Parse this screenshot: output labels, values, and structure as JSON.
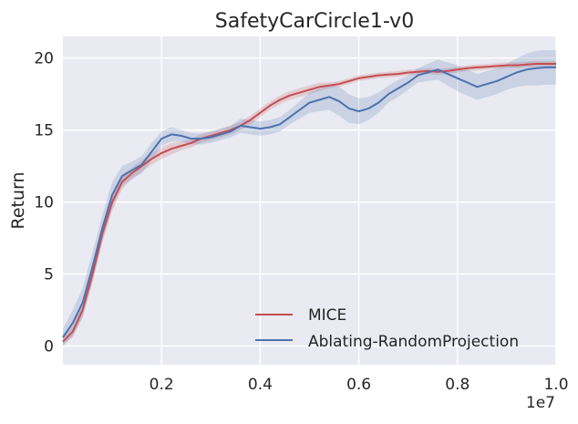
{
  "chart_data": {
    "type": "line",
    "title": "SafetyCarCircle1-v0",
    "xlabel": "",
    "ylabel": "Return",
    "x_offset_label": "1e7",
    "xlim": [
      0.0,
      1.0
    ],
    "ylim": [
      -1.3,
      21.5
    ],
    "xticks": [
      0.2,
      0.4,
      0.6,
      0.8,
      1.0
    ],
    "xtick_labels": [
      "0.2",
      "0.4",
      "0.6",
      "0.8",
      "1.0"
    ],
    "yticks": [
      0,
      5,
      10,
      15,
      20
    ],
    "ytick_labels": [
      "0",
      "5",
      "10",
      "15",
      "20"
    ],
    "grid": true,
    "legend_position": "lower-right",
    "series": [
      {
        "name": "MICE",
        "color": "#c44e52",
        "points": [
          [
            0.0,
            0.3
          ],
          [
            0.02,
            1.0
          ],
          [
            0.04,
            2.5
          ],
          [
            0.06,
            5.0
          ],
          [
            0.08,
            7.8
          ],
          [
            0.1,
            10.0
          ],
          [
            0.12,
            11.4
          ],
          [
            0.14,
            12.0
          ],
          [
            0.16,
            12.5
          ],
          [
            0.18,
            13.0
          ],
          [
            0.2,
            13.4
          ],
          [
            0.22,
            13.7
          ],
          [
            0.24,
            13.9
          ],
          [
            0.26,
            14.1
          ],
          [
            0.28,
            14.4
          ],
          [
            0.3,
            14.6
          ],
          [
            0.32,
            14.8
          ],
          [
            0.34,
            15.0
          ],
          [
            0.36,
            15.3
          ],
          [
            0.38,
            15.7
          ],
          [
            0.4,
            16.2
          ],
          [
            0.42,
            16.7
          ],
          [
            0.44,
            17.1
          ],
          [
            0.46,
            17.4
          ],
          [
            0.48,
            17.6
          ],
          [
            0.5,
            17.8
          ],
          [
            0.52,
            18.0
          ],
          [
            0.54,
            18.1
          ],
          [
            0.56,
            18.2
          ],
          [
            0.58,
            18.4
          ],
          [
            0.6,
            18.6
          ],
          [
            0.62,
            18.7
          ],
          [
            0.64,
            18.8
          ],
          [
            0.66,
            18.85
          ],
          [
            0.68,
            18.9
          ],
          [
            0.7,
            19.0
          ],
          [
            0.72,
            19.05
          ],
          [
            0.74,
            19.1
          ],
          [
            0.76,
            19.05
          ],
          [
            0.78,
            19.1
          ],
          [
            0.8,
            19.2
          ],
          [
            0.82,
            19.3
          ],
          [
            0.84,
            19.35
          ],
          [
            0.86,
            19.4
          ],
          [
            0.88,
            19.45
          ],
          [
            0.9,
            19.5
          ],
          [
            0.92,
            19.5
          ],
          [
            0.94,
            19.55
          ],
          [
            0.96,
            19.6
          ],
          [
            0.98,
            19.6
          ],
          [
            1.0,
            19.6
          ]
        ],
        "band": [
          0.25,
          0.4,
          0.5,
          0.6,
          0.6,
          0.6,
          0.5,
          0.4,
          0.4,
          0.4,
          0.4,
          0.4,
          0.3,
          0.3,
          0.3,
          0.3,
          0.3,
          0.3,
          0.3,
          0.3,
          0.3,
          0.3,
          0.3,
          0.3,
          0.3,
          0.3,
          0.3,
          0.2,
          0.2,
          0.2,
          0.2,
          0.2,
          0.2,
          0.2,
          0.2,
          0.2,
          0.2,
          0.2,
          0.2,
          0.2,
          0.2,
          0.2,
          0.2,
          0.2,
          0.2,
          0.2,
          0.2,
          0.2,
          0.2,
          0.2,
          0.2
        ]
      },
      {
        "name": "Ablating-RandomProjection",
        "color": "#4c72b0",
        "points": [
          [
            0.0,
            0.6
          ],
          [
            0.02,
            1.6
          ],
          [
            0.04,
            3.0
          ],
          [
            0.06,
            5.5
          ],
          [
            0.08,
            8.2
          ],
          [
            0.1,
            10.5
          ],
          [
            0.12,
            11.8
          ],
          [
            0.14,
            12.2
          ],
          [
            0.16,
            12.6
          ],
          [
            0.18,
            13.5
          ],
          [
            0.2,
            14.4
          ],
          [
            0.22,
            14.7
          ],
          [
            0.24,
            14.6
          ],
          [
            0.26,
            14.4
          ],
          [
            0.28,
            14.4
          ],
          [
            0.3,
            14.5
          ],
          [
            0.32,
            14.7
          ],
          [
            0.34,
            14.9
          ],
          [
            0.36,
            15.3
          ],
          [
            0.38,
            15.2
          ],
          [
            0.4,
            15.1
          ],
          [
            0.42,
            15.2
          ],
          [
            0.44,
            15.4
          ],
          [
            0.46,
            15.9
          ],
          [
            0.48,
            16.4
          ],
          [
            0.5,
            16.9
          ],
          [
            0.52,
            17.1
          ],
          [
            0.54,
            17.3
          ],
          [
            0.56,
            17.0
          ],
          [
            0.58,
            16.5
          ],
          [
            0.6,
            16.3
          ],
          [
            0.62,
            16.5
          ],
          [
            0.64,
            16.9
          ],
          [
            0.66,
            17.5
          ],
          [
            0.68,
            17.9
          ],
          [
            0.7,
            18.3
          ],
          [
            0.72,
            18.8
          ],
          [
            0.74,
            19.0
          ],
          [
            0.76,
            19.2
          ],
          [
            0.78,
            18.9
          ],
          [
            0.8,
            18.6
          ],
          [
            0.82,
            18.3
          ],
          [
            0.84,
            18.0
          ],
          [
            0.86,
            18.2
          ],
          [
            0.88,
            18.4
          ],
          [
            0.9,
            18.7
          ],
          [
            0.92,
            19.0
          ],
          [
            0.94,
            19.2
          ],
          [
            0.96,
            19.3
          ],
          [
            0.98,
            19.35
          ],
          [
            1.0,
            19.35
          ]
        ],
        "band": [
          0.6,
          0.9,
          1.0,
          1.0,
          0.9,
          0.9,
          0.7,
          0.6,
          0.6,
          0.6,
          0.5,
          0.5,
          0.4,
          0.4,
          0.4,
          0.4,
          0.4,
          0.4,
          0.5,
          0.5,
          0.5,
          0.5,
          0.5,
          0.5,
          0.6,
          0.7,
          0.8,
          0.9,
          1.0,
          1.0,
          0.9,
          0.8,
          0.7,
          0.6,
          0.6,
          0.5,
          0.5,
          0.6,
          0.7,
          0.8,
          0.9,
          0.9,
          0.9,
          0.9,
          0.9,
          0.9,
          1.0,
          1.1,
          1.2,
          1.2,
          1.2
        ]
      }
    ]
  }
}
